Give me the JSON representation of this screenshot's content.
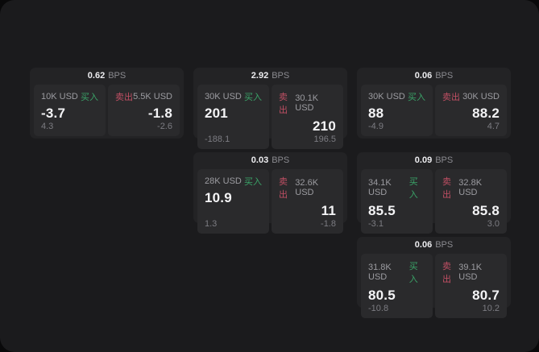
{
  "colors": {
    "surface": "#1b1b1d",
    "card_bg": "#232325",
    "panel_bg": "#2a2a2c",
    "buy_green": "#3aa368",
    "sell_red": "#c04f64",
    "value_white": "#f4f4f6",
    "label_gray": "#9c9ca1"
  },
  "labels": {
    "bps": "BPS",
    "buy": "买入",
    "sell": "卖出"
  },
  "cards": [
    {
      "col": 1,
      "row": 1,
      "bps": "0.62",
      "buy": {
        "size": "10K USD",
        "value": "-3.7",
        "delta": "4.3"
      },
      "sell": {
        "size": "5.5K USD",
        "value": "-1.8",
        "delta": "-2.6"
      }
    },
    {
      "col": 2,
      "row": 1,
      "bps": "2.92",
      "buy": {
        "size": "30K USD",
        "value": "201",
        "delta": "-188.1"
      },
      "sell": {
        "size": "30.1K USD",
        "value": "210",
        "delta": "196.5"
      }
    },
    {
      "col": 3,
      "row": 1,
      "bps": "0.06",
      "buy": {
        "size": "30K USD",
        "value": "88",
        "delta": "-4.9"
      },
      "sell": {
        "size": "30K USD",
        "value": "88.2",
        "delta": "4.7"
      }
    },
    {
      "col": 2,
      "row": 2,
      "bps": "0.03",
      "buy": {
        "size": "28K USD",
        "value": "10.9",
        "delta": "1.3"
      },
      "sell": {
        "size": "32.6K USD",
        "value": "11",
        "delta": "-1.8"
      }
    },
    {
      "col": 3,
      "row": 2,
      "bps": "0.09",
      "buy": {
        "size": "34.1K USD",
        "value": "85.5",
        "delta": "-3.1"
      },
      "sell": {
        "size": "32.8K USD",
        "value": "85.8",
        "delta": "3.0"
      }
    },
    {
      "col": 3,
      "row": 3,
      "bps": "0.06",
      "buy": {
        "size": "31.8K USD",
        "value": "80.5",
        "delta": "-10.8"
      },
      "sell": {
        "size": "39.1K USD",
        "value": "80.7",
        "delta": "10.2"
      }
    }
  ]
}
